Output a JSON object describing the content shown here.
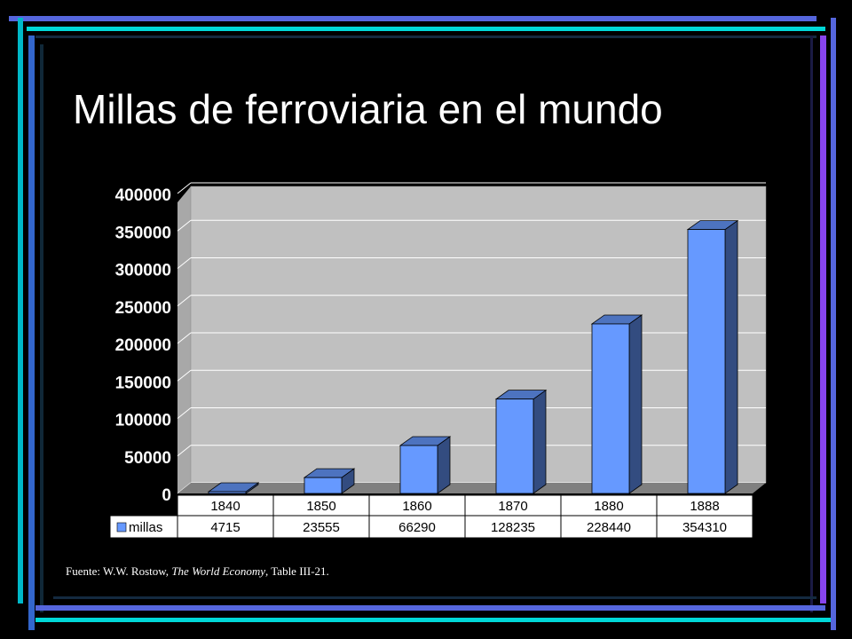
{
  "slide": {
    "title": "Millas de ferroviaria en el mundo",
    "source_prefix": "Fuente:  W.W. Rostow, ",
    "source_italic": "The World Economy",
    "source_suffix": ", Table III-21."
  },
  "colors": {
    "background": "#000000",
    "bar_front": "#6699ff",
    "bar_side": "#334c80",
    "bar_top": "#4d73bf",
    "plot_wall": "#c0c0c0",
    "plot_floor": "#808080",
    "deco_cyan": "#00e0e0",
    "deco_blue": "#5566dd",
    "deco_purple": "#8844ee"
  },
  "chart_data": {
    "type": "bar",
    "categories": [
      "1840",
      "1850",
      "1860",
      "1870",
      "1880",
      "1888"
    ],
    "series": [
      {
        "name": "millas",
        "values": [
          4715,
          23555,
          66290,
          128235,
          228440,
          354310
        ]
      }
    ],
    "ylim": [
      0,
      400000
    ],
    "yticks": [
      "0",
      "50000",
      "100000",
      "150000",
      "200000",
      "250000",
      "300000",
      "350000",
      "400000"
    ],
    "grid": true,
    "legend": "bottom-left in data table",
    "data_table": true
  }
}
